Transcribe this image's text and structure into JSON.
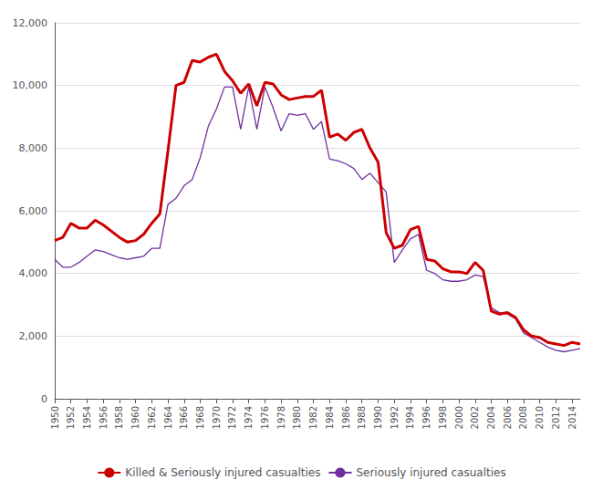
{
  "chart_data": {
    "type": "line",
    "x": [
      1950,
      1951,
      1952,
      1953,
      1954,
      1955,
      1956,
      1957,
      1958,
      1959,
      1960,
      1961,
      1962,
      1963,
      1964,
      1965,
      1966,
      1967,
      1968,
      1969,
      1970,
      1971,
      1972,
      1973,
      1974,
      1975,
      1976,
      1977,
      1978,
      1979,
      1980,
      1981,
      1982,
      1983,
      1984,
      1985,
      1986,
      1987,
      1988,
      1989,
      1990,
      1991,
      1992,
      1993,
      1994,
      1995,
      1996,
      1997,
      1998,
      1999,
      2000,
      2001,
      2002,
      2003,
      2004,
      2005,
      2006,
      2007,
      2008,
      2009,
      2010,
      2011,
      2012,
      2013,
      2014,
      2015
    ],
    "series": [
      {
        "name": "Killed & Seriously injured casualties",
        "color": "#cc0000",
        "values": [
          5050,
          5150,
          5600,
          5450,
          5450,
          5700,
          5550,
          5350,
          5150,
          5000,
          5050,
          5250,
          5600,
          5900,
          7900,
          10000,
          10100,
          10800,
          10750,
          10900,
          11000,
          10450,
          10150,
          9750,
          10050,
          9350,
          10100,
          10050,
          9700,
          9550,
          9600,
          9650,
          9650,
          9850,
          8350,
          8450,
          8250,
          8500,
          8600,
          8000,
          7550,
          5300,
          4800,
          4900,
          5400,
          5500,
          4450,
          4400,
          4150,
          4050,
          4050,
          4000,
          4350,
          4100,
          2800,
          2700,
          2750,
          2600,
          2200,
          2000,
          1950,
          1800,
          1750,
          1700,
          1800,
          1750
        ]
      },
      {
        "name": "Seriously injured casualties",
        "color": "#7030a0",
        "values": [
          4450,
          4200,
          4200,
          4350,
          4550,
          4750,
          4700,
          4600,
          4500,
          4450,
          4500,
          4550,
          4800,
          4800,
          6200,
          6400,
          6800,
          7000,
          7700,
          8700,
          9250,
          9950,
          9950,
          8600,
          9950,
          8600,
          9950,
          9300,
          8550,
          9100,
          9050,
          9100,
          8600,
          8850,
          7650,
          7600,
          7500,
          7350,
          7000,
          7200,
          6900,
          6600,
          4350,
          4750,
          5100,
          5250,
          4100,
          4000,
          3800,
          3750,
          3750,
          3800,
          3950,
          3900,
          2900,
          2750,
          2700,
          2550,
          2100,
          1950,
          1800,
          1650,
          1550,
          1500,
          1550,
          1600
        ]
      }
    ],
    "xlim": [
      1950,
      2015
    ],
    "xticks": [
      1950,
      1952,
      1954,
      1956,
      1958,
      1960,
      1962,
      1964,
      1966,
      1968,
      1970,
      1972,
      1974,
      1976,
      1978,
      1980,
      1982,
      1984,
      1986,
      1988,
      1990,
      1992,
      1994,
      1996,
      1998,
      2000,
      2002,
      2004,
      2006,
      2008,
      2010,
      2012,
      2014
    ],
    "ylim": [
      0,
      12000
    ],
    "yticks": [
      0,
      {
        "value": 2000,
        "label": "2,000"
      },
      {
        "value": 4000,
        "label": "4,000"
      },
      {
        "value": 6000,
        "label": "6,000"
      },
      {
        "value": 8000,
        "label": "8,000"
      },
      {
        "value": 10000,
        "label": "10,000"
      },
      {
        "value": 12000,
        "label": "12,000"
      }
    ],
    "grid": true,
    "legend": "bottom"
  }
}
